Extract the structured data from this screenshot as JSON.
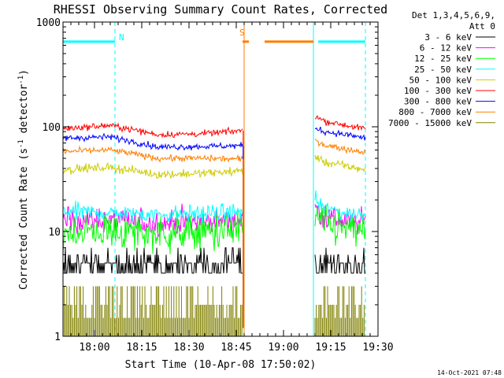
{
  "chart_data": {
    "type": "line",
    "title": "RHESSI Observing Summary Count Rates, Corrected",
    "xlabel": "Start Time (10-Apr-08 17:50:02)",
    "ylabel_main": "Corrected Count Rate (s",
    "ylabel_sup1": "-1",
    "ylabel_mid": " detector",
    "ylabel_sup2": "-1",
    "ylabel_end": ")",
    "y_scale": "log",
    "ylim": [
      1,
      1000
    ],
    "xlim_minutes": [
      0,
      100
    ],
    "x_ticks": [
      {
        "label": "18:00",
        "t": 10
      },
      {
        "label": "18:15",
        "t": 25
      },
      {
        "label": "18:30",
        "t": 40
      },
      {
        "label": "18:45",
        "t": 55
      },
      {
        "label": "19:00",
        "t": 70
      },
      {
        "label": "19:15",
        "t": 85
      },
      {
        "label": "19:30",
        "t": 100
      }
    ],
    "y_ticks": [
      {
        "label": "1",
        "v": 1
      },
      {
        "label": "10",
        "v": 10
      },
      {
        "label": "100",
        "v": 100
      },
      {
        "label": "1000",
        "v": 1000
      }
    ],
    "legend_header": [
      "Det 1,3,4,5,6,9,",
      "Att 0"
    ],
    "legend_placement": "right",
    "series": [
      {
        "name": "3 - 6 keV",
        "color": "#000000",
        "segA": [
          [
            0,
            5.2
          ],
          [
            15,
            5.1
          ],
          [
            30,
            4.9
          ],
          [
            45,
            5.0
          ],
          [
            57,
            5.1
          ]
        ],
        "segB": [
          [
            80,
            5.5
          ],
          [
            83,
            5.2
          ],
          [
            90,
            4.9
          ],
          [
            96,
            4.8
          ]
        ],
        "noise": 0.28
      },
      {
        "name": "6 - 12 keV",
        "color": "#ff00ff",
        "segA": [
          [
            0,
            13
          ],
          [
            15,
            12.8
          ],
          [
            30,
            12.0
          ],
          [
            45,
            12.5
          ],
          [
            57,
            13
          ]
        ],
        "segB": [
          [
            80,
            17
          ],
          [
            83,
            14
          ],
          [
            90,
            12.5
          ],
          [
            96,
            12
          ]
        ],
        "noise": 0.06
      },
      {
        "name": "12 - 25 keV",
        "color": "#00ff00",
        "segA": [
          [
            0,
            10
          ],
          [
            15,
            10
          ],
          [
            30,
            9.5
          ],
          [
            45,
            9.8
          ],
          [
            57,
            10.5
          ]
        ],
        "segB": [
          [
            80,
            14
          ],
          [
            83,
            11.5
          ],
          [
            90,
            10.5
          ],
          [
            96,
            10
          ]
        ],
        "noise": 0.09
      },
      {
        "name": "25 - 50 keV",
        "color": "#00ffff",
        "segA": [
          [
            0,
            15.5
          ],
          [
            15,
            15
          ],
          [
            30,
            14.5
          ],
          [
            45,
            14.8
          ],
          [
            57,
            15.5
          ]
        ],
        "segB": [
          [
            80,
            20
          ],
          [
            83,
            16.5
          ],
          [
            90,
            15
          ],
          [
            96,
            14.5
          ]
        ],
        "noise": 0.04
      },
      {
        "name": "50 - 100 keV",
        "color": "#cccc00",
        "segA": [
          [
            0,
            39
          ],
          [
            15,
            41
          ],
          [
            30,
            35
          ],
          [
            45,
            36
          ],
          [
            57,
            38
          ]
        ],
        "segB": [
          [
            80,
            52
          ],
          [
            83,
            46
          ],
          [
            90,
            42
          ],
          [
            96,
            39
          ]
        ],
        "noise": 0.02
      },
      {
        "name": "100 - 300 keV",
        "color": "#ff0000",
        "segA": [
          [
            0,
            96
          ],
          [
            15,
            103
          ],
          [
            30,
            84
          ],
          [
            45,
            86
          ],
          [
            57,
            92
          ]
        ],
        "segB": [
          [
            80,
            128
          ],
          [
            83,
            113
          ],
          [
            90,
            103
          ],
          [
            96,
            95
          ]
        ],
        "noise": 0.015
      },
      {
        "name": "300 - 800 keV",
        "color": "#0000ff",
        "segA": [
          [
            0,
            78
          ],
          [
            15,
            80
          ],
          [
            30,
            64
          ],
          [
            45,
            65
          ],
          [
            57,
            66
          ]
        ],
        "segB": [
          [
            80,
            98
          ],
          [
            83,
            90
          ],
          [
            90,
            84
          ],
          [
            96,
            78
          ]
        ],
        "noise": 0.015
      },
      {
        "name": "800 - 7000 keV",
        "color": "#ff7f00",
        "segA": [
          [
            0,
            58
          ],
          [
            15,
            60
          ],
          [
            30,
            50
          ],
          [
            45,
            50
          ],
          [
            57,
            49
          ]
        ],
        "segB": [
          [
            80,
            75
          ],
          [
            83,
            67
          ],
          [
            90,
            61
          ],
          [
            96,
            57
          ]
        ],
        "noise": 0.015
      },
      {
        "name": "7000 - 15000 keV",
        "color": "#808000",
        "segA": [
          [
            0,
            1.5
          ],
          [
            57,
            1.5
          ]
        ],
        "segB": [
          [
            80,
            1.5
          ],
          [
            96,
            1.5
          ]
        ],
        "noise": 0.0
      }
    ],
    "flags": [
      {
        "label": "N",
        "color": "#00ffff",
        "intervals": [
          [
            -5,
            16.5
          ],
          [
            81,
            96
          ]
        ],
        "level": 650
      },
      {
        "label": "S",
        "color": "#ff7f00",
        "intervals": [
          [
            57,
            59
          ],
          [
            64,
            79.5
          ]
        ],
        "level": 650
      }
    ],
    "night_boundaries_minutes": [
      0,
      16.5,
      79.5,
      96
    ],
    "saa_boundary_minutes": 57.5
  },
  "footer_date": "14-Oct-2021 07:48"
}
